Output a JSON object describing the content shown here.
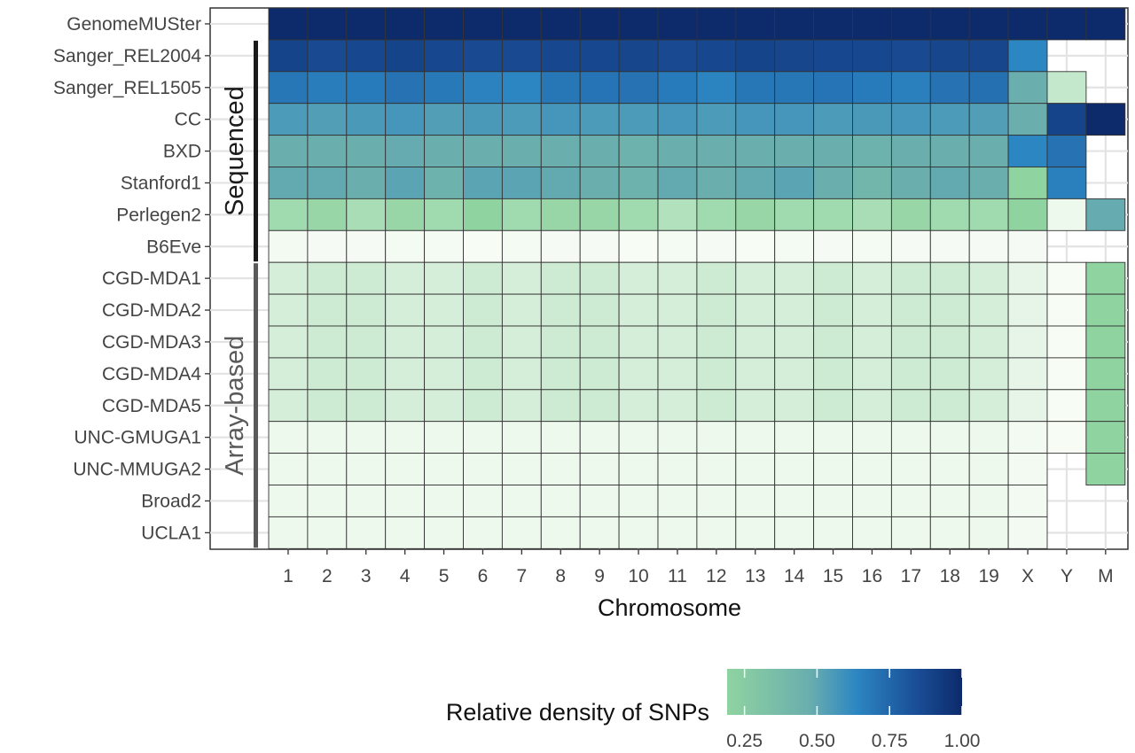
{
  "chart_data": {
    "type": "heatmap",
    "xlabel": "Chromosome",
    "x": [
      "1",
      "2",
      "3",
      "4",
      "5",
      "6",
      "7",
      "8",
      "9",
      "10",
      "11",
      "12",
      "13",
      "14",
      "15",
      "16",
      "17",
      "18",
      "19",
      "X",
      "Y",
      "M"
    ],
    "y": [
      "GenomeMUSter",
      "Sanger_REL2004",
      "Sanger_REL1505",
      "CC",
      "BXD",
      "Stanford1",
      "Perlegen2",
      "B6Eve",
      "CGD-MDA1",
      "CGD-MDA2",
      "CGD-MDA3",
      "CGD-MDA4",
      "CGD-MDA5",
      "UNC-GMUGA1",
      "UNC-MMUGA2",
      "Broad2",
      "UCLA1"
    ],
    "values": [
      [
        1.0,
        1.0,
        1.0,
        1.0,
        1.0,
        1.0,
        1.0,
        1.0,
        1.0,
        1.0,
        1.0,
        1.0,
        1.0,
        1.0,
        1.0,
        1.0,
        1.0,
        1.0,
        1.0,
        1.0,
        1.0,
        1.0
      ],
      [
        0.86,
        0.83,
        0.84,
        0.86,
        0.84,
        0.83,
        0.83,
        0.84,
        0.84,
        0.85,
        0.83,
        0.84,
        0.86,
        0.85,
        0.84,
        0.84,
        0.83,
        0.85,
        0.85,
        0.55,
        null,
        null
      ],
      [
        0.62,
        0.59,
        0.6,
        0.64,
        0.61,
        0.57,
        0.55,
        0.62,
        0.63,
        0.64,
        0.6,
        0.56,
        0.62,
        0.62,
        0.63,
        0.6,
        0.58,
        0.64,
        0.65,
        0.3,
        0.06,
        null
      ],
      [
        0.42,
        0.4,
        0.43,
        0.45,
        0.4,
        0.43,
        0.42,
        0.45,
        0.42,
        0.42,
        0.45,
        0.42,
        0.45,
        0.45,
        0.42,
        0.43,
        0.45,
        0.42,
        0.4,
        0.3,
        0.86,
        1.0
      ],
      [
        0.3,
        0.3,
        0.3,
        0.32,
        0.3,
        0.3,
        0.3,
        0.3,
        0.3,
        0.28,
        0.3,
        0.3,
        0.3,
        0.3,
        0.3,
        0.28,
        0.3,
        0.3,
        0.3,
        0.55,
        0.64,
        null
      ],
      [
        0.33,
        0.33,
        0.3,
        0.36,
        0.28,
        0.36,
        0.36,
        0.33,
        0.3,
        0.28,
        0.33,
        0.3,
        0.33,
        0.36,
        0.3,
        0.26,
        0.3,
        0.33,
        0.3,
        0.12,
        0.58,
        null
      ],
      [
        0.1,
        0.11,
        0.09,
        0.11,
        0.1,
        0.12,
        0.1,
        0.11,
        0.11,
        0.1,
        0.08,
        0.1,
        0.11,
        0.1,
        0.1,
        0.09,
        0.11,
        0.1,
        0.1,
        0.12,
        0.01,
        0.32
      ],
      [
        0.005,
        0.002,
        0.002,
        0.004,
        0.003,
        0.0,
        0.003,
        0.002,
        0.002,
        0.0,
        0.003,
        0.002,
        0.0,
        0.003,
        0.002,
        0.003,
        0.002,
        0.002,
        0.002,
        0.002,
        null,
        null
      ],
      [
        0.04,
        0.05,
        0.05,
        0.04,
        0.04,
        0.05,
        0.04,
        0.05,
        0.05,
        0.04,
        0.04,
        0.05,
        0.04,
        0.04,
        0.05,
        0.04,
        0.05,
        0.05,
        0.04,
        0.02,
        0.0,
        0.12
      ],
      [
        0.04,
        0.05,
        0.05,
        0.04,
        0.04,
        0.05,
        0.04,
        0.05,
        0.05,
        0.04,
        0.04,
        0.05,
        0.04,
        0.04,
        0.05,
        0.04,
        0.05,
        0.05,
        0.04,
        0.02,
        0.0,
        0.12
      ],
      [
        0.04,
        0.05,
        0.05,
        0.04,
        0.04,
        0.05,
        0.04,
        0.05,
        0.05,
        0.04,
        0.04,
        0.05,
        0.04,
        0.04,
        0.05,
        0.04,
        0.05,
        0.05,
        0.04,
        0.02,
        0.0,
        0.12
      ],
      [
        0.04,
        0.05,
        0.05,
        0.04,
        0.04,
        0.05,
        0.04,
        0.05,
        0.05,
        0.04,
        0.04,
        0.05,
        0.04,
        0.04,
        0.05,
        0.04,
        0.05,
        0.05,
        0.04,
        0.02,
        0.0,
        0.12
      ],
      [
        0.04,
        0.05,
        0.05,
        0.04,
        0.04,
        0.05,
        0.04,
        0.05,
        0.05,
        0.04,
        0.04,
        0.05,
        0.04,
        0.04,
        0.05,
        0.04,
        0.05,
        0.05,
        0.04,
        0.02,
        0.0,
        0.12
      ],
      [
        0.01,
        0.01,
        0.01,
        0.01,
        0.01,
        0.01,
        0.01,
        0.01,
        0.01,
        0.01,
        0.01,
        0.01,
        0.01,
        0.01,
        0.01,
        0.01,
        0.01,
        0.01,
        0.01,
        0.005,
        0.0,
        0.12
      ],
      [
        0.01,
        0.01,
        0.01,
        0.01,
        0.01,
        0.01,
        0.01,
        0.01,
        0.01,
        0.01,
        0.01,
        0.01,
        0.01,
        0.01,
        0.01,
        0.01,
        0.01,
        0.01,
        0.01,
        0.005,
        null,
        0.12
      ],
      [
        0.01,
        0.01,
        0.01,
        0.01,
        0.01,
        0.01,
        0.01,
        0.01,
        0.01,
        0.01,
        0.01,
        0.01,
        0.01,
        0.01,
        0.01,
        0.01,
        0.01,
        0.01,
        0.01,
        0.005,
        null,
        null
      ],
      [
        0.01,
        0.01,
        0.01,
        0.01,
        0.01,
        0.01,
        0.01,
        0.01,
        0.01,
        0.01,
        0.01,
        0.01,
        0.01,
        0.01,
        0.01,
        0.01,
        0.01,
        0.01,
        0.01,
        0.005,
        null,
        null
      ]
    ],
    "groups": [
      {
        "label": "Sequenced",
        "from": "Sanger_REL2004",
        "to": "B6Eve",
        "color": "#1a1a1a"
      },
      {
        "label": "Array-based",
        "from": "CGD-MDA1",
        "to": "UCLA1",
        "color": "#5a5a5a"
      }
    ],
    "colorscale": {
      "title": "Relative density of SNPs",
      "range": [
        0.0,
        1.0
      ],
      "stops": [
        {
          "v": 0.0,
          "color": "#f7fcf5"
        },
        {
          "v": 0.12,
          "color": "#8fd3a1"
        },
        {
          "v": 0.3,
          "color": "#6aaeae"
        },
        {
          "v": 0.55,
          "color": "#2c86c2"
        },
        {
          "v": 0.8,
          "color": "#1a4f98"
        },
        {
          "v": 1.0,
          "color": "#0d2a6b"
        }
      ],
      "legend_stops": [
        {
          "v": 0.0,
          "color": "#8fd3a1"
        },
        {
          "v": 0.35,
          "color": "#6aaeae"
        },
        {
          "v": 0.55,
          "color": "#2c86c2"
        },
        {
          "v": 0.8,
          "color": "#1a4f98"
        },
        {
          "v": 1.0,
          "color": "#0d2a6b"
        }
      ],
      "ticks": [
        0.25,
        0.5,
        0.75,
        1.0
      ],
      "tick_labels": [
        "0.25",
        "0.50",
        "0.75",
        "1.00"
      ]
    },
    "grid": true,
    "legend_position": "bottom"
  }
}
